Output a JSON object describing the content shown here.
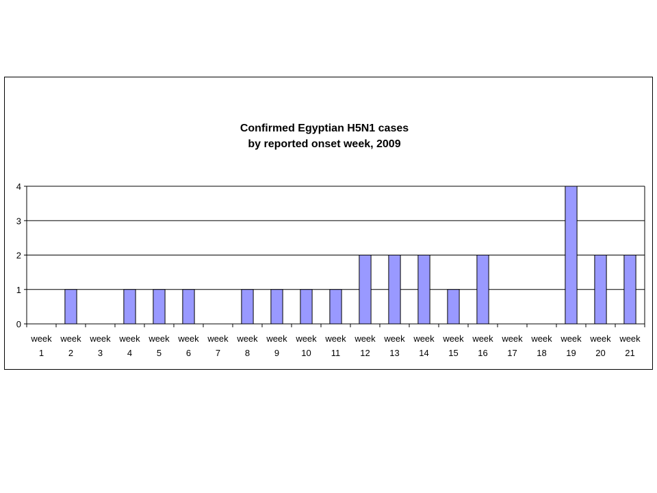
{
  "chart_data": {
    "type": "bar",
    "title_lines": [
      "Confirmed Egyptian H5N1 cases",
      "by reported onset week, 2009"
    ],
    "xlabel": "",
    "ylabel": "",
    "categories": [
      [
        "week",
        "1"
      ],
      [
        "week",
        "2"
      ],
      [
        "week",
        "3"
      ],
      [
        "week",
        "4"
      ],
      [
        "week",
        "5"
      ],
      [
        "week",
        "6"
      ],
      [
        "week",
        "7"
      ],
      [
        "week",
        "8"
      ],
      [
        "week",
        "9"
      ],
      [
        "week",
        "10"
      ],
      [
        "week",
        "11"
      ],
      [
        "week",
        "12"
      ],
      [
        "week",
        "13"
      ],
      [
        "week",
        "14"
      ],
      [
        "week",
        "15"
      ],
      [
        "week",
        "16"
      ],
      [
        "week",
        "17"
      ],
      [
        "week",
        "18"
      ],
      [
        "week",
        "19"
      ],
      [
        "week",
        "20"
      ],
      [
        "week",
        "21"
      ]
    ],
    "values": [
      0,
      1,
      0,
      1,
      1,
      1,
      0,
      1,
      1,
      1,
      1,
      2,
      2,
      2,
      1,
      2,
      0,
      0,
      4,
      2,
      2
    ],
    "ylim": [
      0,
      4
    ],
    "yticks": [
      "0",
      "1",
      "2",
      "3",
      "4"
    ],
    "grid": true,
    "legend": "none",
    "colors": {
      "bar_fill": "#9999ff",
      "bar_stroke": "#000000",
      "grid": "#000000",
      "plot_bg": "#ffffff"
    }
  }
}
